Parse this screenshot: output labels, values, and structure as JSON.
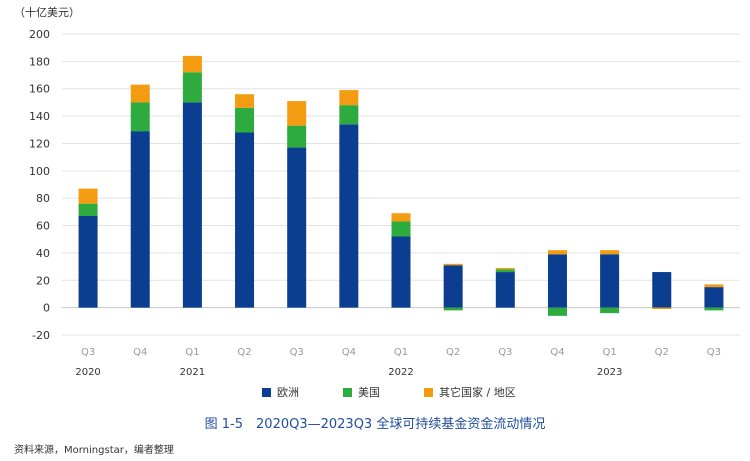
{
  "unit_label": "（十亿美元）",
  "caption": "图 1-5　2020Q3—2023Q3 全球可持续基金资金流动情况",
  "source": "资料来源，Morningstar，编者整理",
  "colors": {
    "europe": "#0b3d91",
    "us": "#2eab3e",
    "other": "#f39c12",
    "grid": "#e3e3e3",
    "tick": "#999999"
  },
  "chart_data": {
    "type": "bar",
    "stacked": true,
    "ylim": [
      -20,
      200
    ],
    "yticks": [
      -20,
      0,
      20,
      40,
      60,
      80,
      100,
      120,
      140,
      160,
      180,
      200
    ],
    "grid": true,
    "legend_position": "bottom",
    "categories": [
      "Q3",
      "Q4",
      "Q1",
      "Q2",
      "Q3",
      "Q4",
      "Q1",
      "Q2",
      "Q3",
      "Q4",
      "Q1",
      "Q2",
      "Q3"
    ],
    "years": [
      {
        "label": "2020",
        "index": 0
      },
      {
        "label": "2021",
        "index": 2
      },
      {
        "label": "2022",
        "index": 6
      },
      {
        "label": "2023",
        "index": 10
      }
    ],
    "series": [
      {
        "name": "欧洲",
        "key": "europe",
        "values": [
          67,
          129,
          150,
          128,
          117,
          134,
          52,
          31,
          26,
          39,
          39,
          26,
          15
        ]
      },
      {
        "name": "美国",
        "key": "us",
        "values": [
          9,
          21,
          22,
          18,
          16,
          14,
          11,
          -2,
          2,
          -6,
          -4,
          0,
          -2
        ]
      },
      {
        "name": "其它国家 / 地区",
        "key": "other",
        "values": [
          11,
          13,
          12,
          10,
          18,
          11,
          6,
          1,
          1,
          3,
          3,
          -1,
          2
        ]
      }
    ]
  }
}
